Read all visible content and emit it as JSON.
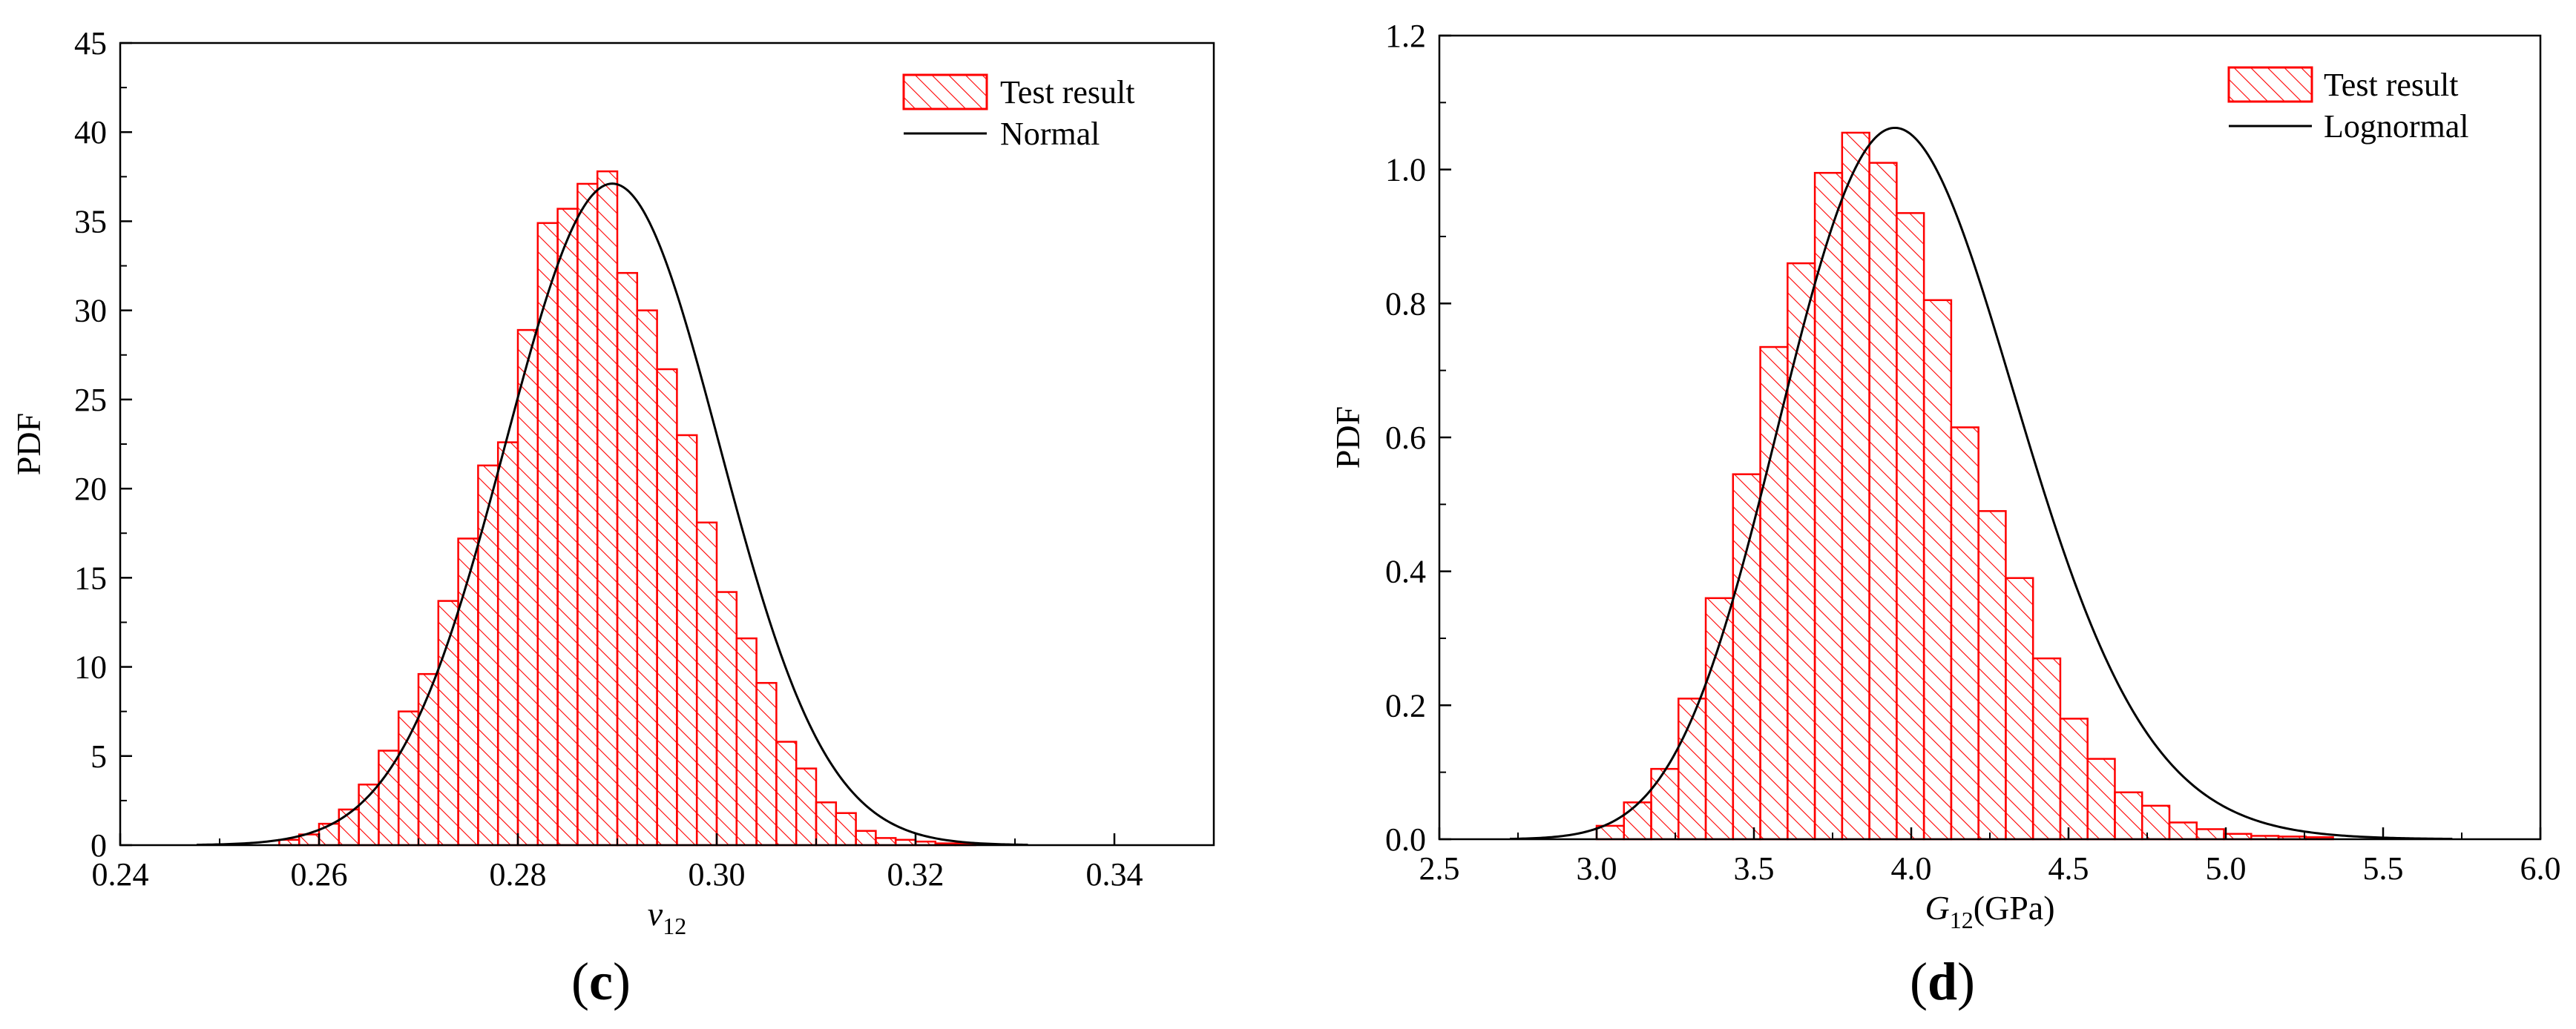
{
  "colors": {
    "bar_edge": "#ff0000",
    "hatch": "#ff0000",
    "curve": "#000000",
    "axis": "#000000"
  },
  "chart_data": [
    {
      "type": "bar",
      "panel_label": "c",
      "title": "",
      "ylabel": "PDF",
      "xlabel_main": "v",
      "xlabel_sub": "12",
      "xlabel_suffix": "",
      "xlim": [
        0.24,
        0.35
      ],
      "ylim": [
        0,
        45
      ],
      "xticks": [
        0.24,
        0.26,
        0.28,
        0.3,
        0.32,
        0.34
      ],
      "xtick_labels": [
        "0.24",
        "0.26",
        "0.28",
        "0.30",
        "0.32",
        "0.34"
      ],
      "yticks": [
        0,
        5,
        10,
        15,
        20,
        25,
        30,
        35,
        40,
        45
      ],
      "ytick_labels": [
        "0",
        "5",
        "10",
        "15",
        "20",
        "25",
        "30",
        "35",
        "40",
        "45"
      ],
      "legend": {
        "position": "top-right",
        "bars_label": "Test result",
        "curve_label": "Normal"
      },
      "bin_start": 0.256,
      "bin_width": 0.002,
      "values": [
        0.3,
        0.6,
        1.2,
        2.0,
        3.4,
        5.3,
        7.5,
        9.6,
        13.7,
        17.2,
        21.3,
        22.6,
        28.9,
        34.9,
        35.7,
        37.1,
        37.8,
        32.1,
        30.0,
        26.7,
        23.0,
        18.1,
        14.2,
        11.6,
        9.1,
        5.8,
        4.3,
        2.4,
        1.8,
        0.8,
        0.4,
        0.3,
        0.2,
        0.1,
        0.1
      ],
      "curve": {
        "distribution": "Normal",
        "mean": 0.2895,
        "std": 0.01075
      }
    },
    {
      "type": "bar",
      "panel_label": "d",
      "title": "",
      "ylabel": "PDF",
      "xlabel_main": "G",
      "xlabel_sub": "12",
      "xlabel_suffix": "(GPa)",
      "xlim": [
        2.5,
        6.0
      ],
      "ylim": [
        0,
        1.2
      ],
      "xticks": [
        2.5,
        3.0,
        3.5,
        4.0,
        4.5,
        5.0,
        5.5,
        6.0
      ],
      "xtick_labels": [
        "2.5",
        "3.0",
        "3.5",
        "4.0",
        "4.5",
        "5.0",
        "5.5",
        "6.0"
      ],
      "yticks": [
        0,
        0.2,
        0.4,
        0.6,
        0.8,
        1.0,
        1.2
      ],
      "ytick_labels": [
        "0.0",
        "0.2",
        "0.4",
        "0.6",
        "0.8",
        "1.0",
        "1.2"
      ],
      "legend": {
        "position": "top-right",
        "bars_label": "Test result",
        "curve_label": "Lognormal"
      },
      "bin_start": 3.0,
      "bin_width": 0.0867,
      "values": [
        0.02,
        0.055,
        0.105,
        0.21,
        0.36,
        0.545,
        0.735,
        0.86,
        0.995,
        1.055,
        1.01,
        0.935,
        0.805,
        0.615,
        0.49,
        0.39,
        0.27,
        0.18,
        0.12,
        0.07,
        0.05,
        0.025,
        0.015,
        0.008,
        0.005,
        0.004,
        0.003
      ],
      "curve": {
        "distribution": "Lognormal",
        "mu": 1.3822,
        "sigma": 0.0947
      }
    }
  ]
}
